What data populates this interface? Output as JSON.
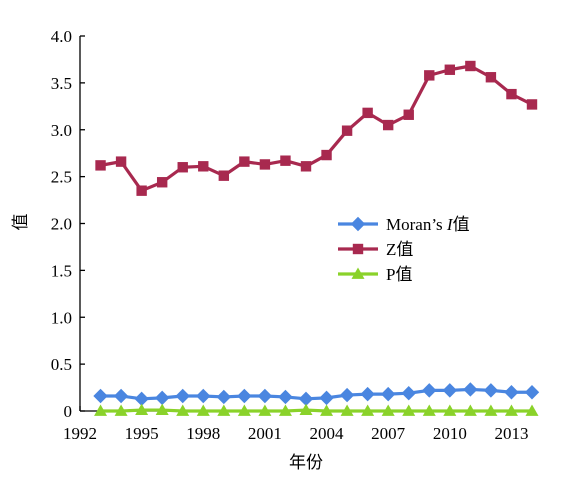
{
  "chart_data": {
    "type": "line",
    "xlabel": "年份",
    "ylabel": "值",
    "xlim": [
      1992,
      2014
    ],
    "ylim": [
      0,
      4.0
    ],
    "y_ticks": [
      "0",
      "0.5",
      "1.0",
      "1.5",
      "2.0",
      "2.5",
      "3.0",
      "3.5",
      "4.0"
    ],
    "x_ticks": [
      "1992",
      "1995",
      "1998",
      "2001",
      "2004",
      "2007",
      "2010",
      "2013"
    ],
    "grid": false,
    "legend_position": "center-right",
    "x": [
      1993,
      1994,
      1995,
      1996,
      1997,
      1998,
      1999,
      2000,
      2001,
      2002,
      2003,
      2004,
      2005,
      2006,
      2007,
      2008,
      2009,
      2010,
      2011,
      2012,
      2013,
      2014
    ],
    "series": [
      {
        "name": "Moran's I值",
        "name_prefix": "Moran’s ",
        "name_italic": "I",
        "name_suffix": "值",
        "color": "#4a86e0",
        "marker": "diamond",
        "values": [
          0.16,
          0.16,
          0.13,
          0.14,
          0.16,
          0.16,
          0.15,
          0.16,
          0.16,
          0.15,
          0.13,
          0.14,
          0.17,
          0.18,
          0.18,
          0.19,
          0.22,
          0.22,
          0.23,
          0.22,
          0.2,
          0.2
        ]
      },
      {
        "name": "Z值",
        "color": "#a8294f",
        "marker": "square",
        "values": [
          2.62,
          2.66,
          2.35,
          2.44,
          2.6,
          2.61,
          2.51,
          2.66,
          2.63,
          2.67,
          2.61,
          2.73,
          2.99,
          3.18,
          3.05,
          3.16,
          3.58,
          3.64,
          3.68,
          3.56,
          3.38,
          3.27
        ]
      },
      {
        "name": "P值",
        "color": "#8ad22a",
        "marker": "triangle",
        "values": [
          0.0,
          0.0,
          0.01,
          0.01,
          0.0,
          0.0,
          0.0,
          0.0,
          0.0,
          0.0,
          0.01,
          0.0,
          0.0,
          0.0,
          0.0,
          0.0,
          0.0,
          0.0,
          0.0,
          0.0,
          0.0,
          0.0
        ]
      }
    ]
  }
}
